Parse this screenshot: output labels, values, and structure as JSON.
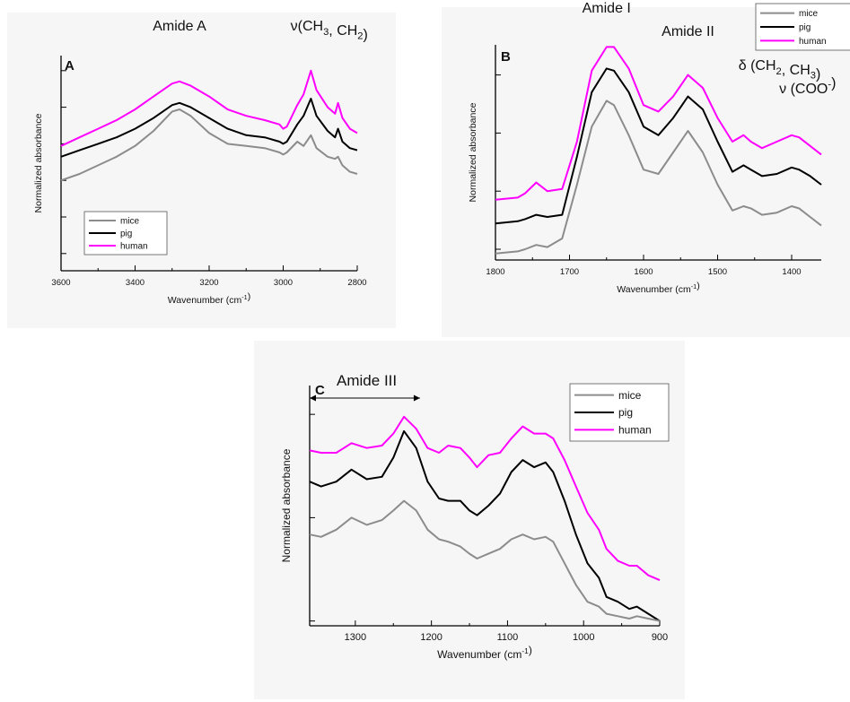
{
  "chart_data": [
    {
      "type": "line",
      "panel_label": "A",
      "xlabel": "Wavenumber (cm⁻¹)",
      "ylabel": "Normalized absorbance",
      "xlim": [
        3600,
        2800
      ],
      "x_reversed": true,
      "x_ticks": [
        "3600",
        "3400",
        "3200",
        "3000",
        "2800"
      ],
      "y_ticks_labeled": false,
      "ylim": [
        0,
        1
      ],
      "legend": {
        "position": "bottom-left",
        "entries": [
          "mice",
          "pig",
          "human"
        ]
      },
      "annotations": [
        {
          "text": "Amide A",
          "x": 3280
        },
        {
          "text": "ν(CH₃, CH₂)",
          "x": 2900
        }
      ],
      "series": [
        {
          "name": "human",
          "color": "#ff00ff",
          "x": [
            3600,
            3550,
            3500,
            3450,
            3400,
            3350,
            3300,
            3280,
            3250,
            3200,
            3150,
            3100,
            3050,
            3010,
            3000,
            2990,
            2962,
            2945,
            2925,
            2910,
            2880,
            2860,
            2852,
            2840,
            2820,
            2800
          ],
          "y": [
            0.58,
            0.62,
            0.66,
            0.7,
            0.75,
            0.81,
            0.87,
            0.88,
            0.86,
            0.81,
            0.75,
            0.72,
            0.7,
            0.68,
            0.66,
            0.67,
            0.77,
            0.82,
            0.93,
            0.84,
            0.76,
            0.73,
            0.78,
            0.71,
            0.66,
            0.64
          ]
        },
        {
          "name": "pig",
          "color": "#000000",
          "x": [
            3600,
            3550,
            3500,
            3450,
            3400,
            3350,
            3300,
            3280,
            3250,
            3200,
            3150,
            3100,
            3050,
            3010,
            3000,
            2990,
            2962,
            2945,
            2925,
            2910,
            2880,
            2860,
            2852,
            2840,
            2820,
            2800
          ],
          "y": [
            0.53,
            0.56,
            0.59,
            0.62,
            0.66,
            0.71,
            0.77,
            0.78,
            0.76,
            0.71,
            0.66,
            0.63,
            0.62,
            0.6,
            0.59,
            0.6,
            0.68,
            0.72,
            0.8,
            0.72,
            0.65,
            0.62,
            0.66,
            0.6,
            0.57,
            0.56
          ]
        },
        {
          "name": "mice",
          "color": "#8c8c8c",
          "x": [
            3600,
            3550,
            3500,
            3450,
            3400,
            3350,
            3300,
            3280,
            3250,
            3200,
            3150,
            3100,
            3050,
            3010,
            3000,
            2990,
            2962,
            2945,
            2925,
            2910,
            2880,
            2860,
            2852,
            2840,
            2820,
            2800
          ],
          "y": [
            0.42,
            0.45,
            0.49,
            0.53,
            0.58,
            0.65,
            0.74,
            0.75,
            0.72,
            0.64,
            0.59,
            0.58,
            0.57,
            0.55,
            0.54,
            0.55,
            0.6,
            0.58,
            0.63,
            0.57,
            0.53,
            0.52,
            0.53,
            0.49,
            0.46,
            0.45
          ]
        }
      ]
    },
    {
      "type": "line",
      "panel_label": "B",
      "xlabel": "Wavenumber (cm⁻¹)",
      "ylabel": "Normalized absorbance",
      "xlim": [
        1800,
        1360
      ],
      "x_reversed": true,
      "x_ticks": [
        "1800",
        "1700",
        "1600",
        "1500",
        "1400"
      ],
      "y_ticks_labeled": false,
      "ylim": [
        0,
        1
      ],
      "legend": {
        "position": "top-right",
        "entries": [
          "mice",
          "pig",
          "human"
        ]
      },
      "annotations": [
        {
          "text": "Amide I",
          "x": 1650
        },
        {
          "text": "Amide II",
          "x": 1540
        },
        {
          "text": "δ (CH₂, CH₃)",
          "x": 1450
        },
        {
          "text": "ν (COO⁻)",
          "x": 1395
        }
      ],
      "series": [
        {
          "name": "human",
          "color": "#ff00ff",
          "x": [
            1800,
            1770,
            1760,
            1745,
            1730,
            1710,
            1690,
            1670,
            1650,
            1640,
            1620,
            1600,
            1580,
            1560,
            1540,
            1520,
            1500,
            1480,
            1465,
            1455,
            1440,
            1420,
            1400,
            1390,
            1375,
            1360
          ],
          "y": [
            0.28,
            0.29,
            0.31,
            0.36,
            0.32,
            0.33,
            0.55,
            0.88,
            0.99,
            0.99,
            0.89,
            0.72,
            0.69,
            0.76,
            0.86,
            0.8,
            0.66,
            0.55,
            0.58,
            0.55,
            0.52,
            0.55,
            0.58,
            0.57,
            0.53,
            0.49
          ]
        },
        {
          "name": "pig",
          "color": "#000000",
          "x": [
            1800,
            1770,
            1760,
            1745,
            1730,
            1710,
            1690,
            1670,
            1650,
            1640,
            1620,
            1600,
            1580,
            1560,
            1540,
            1520,
            1500,
            1480,
            1465,
            1455,
            1440,
            1420,
            1400,
            1390,
            1375,
            1360
          ],
          "y": [
            0.17,
            0.18,
            0.19,
            0.21,
            0.2,
            0.21,
            0.48,
            0.78,
            0.89,
            0.88,
            0.78,
            0.62,
            0.58,
            0.66,
            0.76,
            0.7,
            0.55,
            0.41,
            0.44,
            0.42,
            0.39,
            0.4,
            0.43,
            0.42,
            0.39,
            0.35
          ]
        },
        {
          "name": "mice",
          "color": "#8c8c8c",
          "x": [
            1800,
            1770,
            1760,
            1745,
            1730,
            1710,
            1690,
            1670,
            1650,
            1640,
            1620,
            1600,
            1580,
            1560,
            1540,
            1520,
            1500,
            1480,
            1465,
            1455,
            1440,
            1420,
            1400,
            1390,
            1375,
            1360
          ],
          "y": [
            0.03,
            0.04,
            0.05,
            0.07,
            0.06,
            0.1,
            0.35,
            0.62,
            0.74,
            0.72,
            0.58,
            0.42,
            0.4,
            0.5,
            0.6,
            0.5,
            0.35,
            0.23,
            0.25,
            0.24,
            0.21,
            0.22,
            0.25,
            0.24,
            0.2,
            0.16
          ]
        }
      ]
    },
    {
      "type": "line",
      "panel_label": "C",
      "xlabel": "Wavenumber (cm⁻¹)",
      "ylabel": "Normalized absorbance",
      "xlim": [
        1360,
        900
      ],
      "x_reversed": true,
      "x_ticks": [
        "1300",
        "1200",
        "1100",
        "1000",
        "900"
      ],
      "y_ticks_labeled": false,
      "ylim": [
        0,
        1
      ],
      "legend": {
        "position": "top-right",
        "entries": [
          "mice",
          "pig",
          "human"
        ]
      },
      "annotations": [
        {
          "text": "Amide III",
          "x": 1285,
          "arrow_from": 1360,
          "arrow_to": 1215
        }
      ],
      "series": [
        {
          "name": "human",
          "color": "#ff00ff",
          "x": [
            1360,
            1345,
            1325,
            1305,
            1285,
            1265,
            1250,
            1236,
            1220,
            1205,
            1190,
            1178,
            1162,
            1150,
            1140,
            1125,
            1110,
            1095,
            1080,
            1065,
            1050,
            1040,
            1025,
            1010,
            995,
            980,
            970,
            955,
            940,
            930,
            915,
            900
          ],
          "y": [
            0.73,
            0.72,
            0.72,
            0.76,
            0.74,
            0.75,
            0.8,
            0.87,
            0.82,
            0.74,
            0.72,
            0.75,
            0.74,
            0.7,
            0.66,
            0.71,
            0.72,
            0.78,
            0.83,
            0.8,
            0.8,
            0.78,
            0.69,
            0.58,
            0.47,
            0.4,
            0.32,
            0.27,
            0.25,
            0.25,
            0.21,
            0.19
          ]
        },
        {
          "name": "pig",
          "color": "#000000",
          "x": [
            1360,
            1345,
            1325,
            1305,
            1285,
            1265,
            1250,
            1236,
            1220,
            1205,
            1190,
            1178,
            1162,
            1150,
            1140,
            1125,
            1110,
            1095,
            1080,
            1065,
            1050,
            1040,
            1025,
            1010,
            995,
            980,
            970,
            955,
            940,
            930,
            915,
            900
          ],
          "y": [
            0.6,
            0.58,
            0.6,
            0.65,
            0.61,
            0.62,
            0.7,
            0.81,
            0.74,
            0.6,
            0.53,
            0.52,
            0.52,
            0.48,
            0.46,
            0.5,
            0.55,
            0.64,
            0.69,
            0.66,
            0.68,
            0.64,
            0.52,
            0.38,
            0.26,
            0.2,
            0.12,
            0.1,
            0.07,
            0.08,
            0.05,
            0.02
          ]
        },
        {
          "name": "mice",
          "color": "#8c8c8c",
          "x": [
            1360,
            1345,
            1325,
            1305,
            1285,
            1265,
            1250,
            1236,
            1220,
            1205,
            1190,
            1178,
            1162,
            1150,
            1140,
            1125,
            1110,
            1095,
            1080,
            1065,
            1050,
            1040,
            1025,
            1010,
            995,
            980,
            970,
            955,
            940,
            930,
            915,
            900
          ],
          "y": [
            0.38,
            0.37,
            0.4,
            0.45,
            0.42,
            0.44,
            0.48,
            0.52,
            0.48,
            0.4,
            0.36,
            0.35,
            0.33,
            0.3,
            0.28,
            0.3,
            0.32,
            0.36,
            0.38,
            0.36,
            0.37,
            0.35,
            0.26,
            0.17,
            0.1,
            0.08,
            0.05,
            0.04,
            0.03,
            0.04,
            0.03,
            0.02
          ]
        }
      ]
    }
  ]
}
